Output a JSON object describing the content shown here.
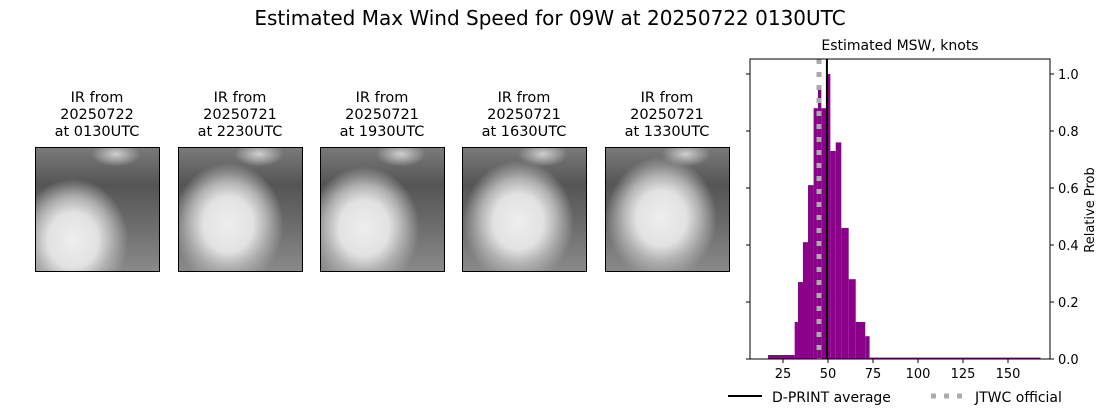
{
  "title": "Estimated Max Wind Speed for 09W at 20250722 0130UTC",
  "panels": [
    {
      "l1": "IR from",
      "l2": "20250722",
      "l3": "at 0130UTC"
    },
    {
      "l1": "IR from",
      "l2": "20250721",
      "l3": "at 2230UTC"
    },
    {
      "l1": "IR from",
      "l2": "20250721",
      "l3": "at 1930UTC"
    },
    {
      "l1": "IR from",
      "l2": "20250721",
      "l3": "at 1630UTC"
    },
    {
      "l1": "IR from",
      "l2": "20250721",
      "l3": "at 1330UTC"
    }
  ],
  "chart_data": {
    "type": "bar",
    "title": "Estimated MSW, knots",
    "ylabel": "Relative Prob",
    "xlim": [
      8,
      175
    ],
    "ylim": [
      0,
      1.05
    ],
    "xticks": [
      25,
      50,
      75,
      100,
      125,
      150
    ],
    "yticks": [
      "0.0",
      "0.2",
      "0.4",
      "0.6",
      "0.8",
      "1.0"
    ],
    "bar_color": "#8b008b",
    "bins": [
      {
        "x0": 16.7,
        "x1": 31.5,
        "p": 0.014
      },
      {
        "x0": 31.5,
        "x1": 33.3,
        "p": 0.13
      },
      {
        "x0": 33.3,
        "x1": 36.1,
        "p": 0.27
      },
      {
        "x0": 36.1,
        "x1": 38.9,
        "p": 0.41
      },
      {
        "x0": 38.9,
        "x1": 42.0,
        "p": 0.61
      },
      {
        "x0": 42.0,
        "x1": 44.4,
        "p": 0.88
      },
      {
        "x0": 44.4,
        "x1": 46.3,
        "p": 0.96
      },
      {
        "x0": 46.3,
        "x1": 49.1,
        "p": 0.88
      },
      {
        "x0": 49.1,
        "x1": 51.3,
        "p": 1.0
      },
      {
        "x0": 51.3,
        "x1": 54.3,
        "p": 0.73
      },
      {
        "x0": 54.3,
        "x1": 57.4,
        "p": 0.76
      },
      {
        "x0": 57.4,
        "x1": 61.5,
        "p": 0.46
      },
      {
        "x0": 61.5,
        "x1": 65.4,
        "p": 0.28
      },
      {
        "x0": 65.4,
        "x1": 70.7,
        "p": 0.13
      },
      {
        "x0": 70.7,
        "x1": 73.1,
        "p": 0.08
      },
      {
        "x0": 73.1,
        "x1": 168,
        "p": 0.005
      }
    ],
    "dprint_average": 49.4,
    "jtwc_official": 45,
    "legend": [
      {
        "label": "D-PRINT average",
        "color": "#000000",
        "style": "solid"
      },
      {
        "label": "JTWC official",
        "color": "#aaaaaa",
        "style": "dotted"
      }
    ],
    "legend_placement": "bottom"
  }
}
